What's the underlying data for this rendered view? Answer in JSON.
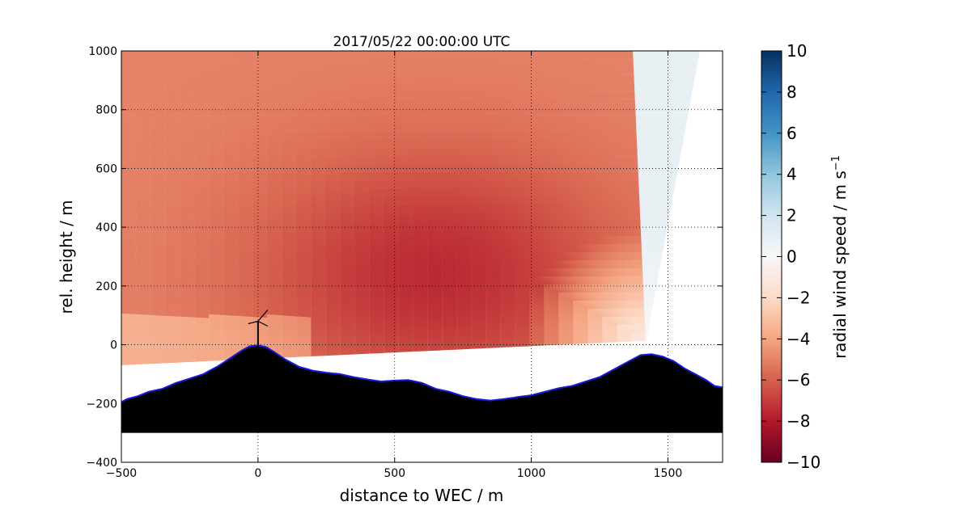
{
  "chart_data": {
    "type": "heatmap",
    "title": "2017/05/22 00:00:00 UTC",
    "xlabel": "distance to WEC / m",
    "ylabel": "rel. height / m",
    "xlim": [
      -500,
      1700
    ],
    "ylim": [
      -400,
      1000
    ],
    "xticks": [
      -500,
      0,
      500,
      1000,
      1500
    ],
    "xtick_labels": [
      "−500",
      "0",
      "500",
      "1000",
      "1500"
    ],
    "yticks": [
      -400,
      -200,
      0,
      200,
      400,
      600,
      800,
      1000
    ],
    "ytick_labels": [
      "−400",
      "−200",
      "0",
      "200",
      "400",
      "600",
      "800",
      "1000"
    ],
    "grid": true,
    "colorbar": {
      "label": "radial wind speed / m s",
      "label_superscript": "−1",
      "colormap": "RdBu",
      "range": [
        -10,
        10
      ],
      "ticks": [
        10,
        8,
        6,
        4,
        2,
        0,
        -2,
        -4,
        -6,
        -8,
        -10
      ],
      "tick_labels": [
        "10",
        "8",
        "6",
        "4",
        "2",
        "0",
        "−2",
        "−4",
        "−6",
        "−8",
        "−10"
      ]
    },
    "scan_origin": {
      "x": 1420,
      "y": 15
    },
    "turbine": {
      "x": 0,
      "y": 0,
      "hub_height": 80
    },
    "terrain": {
      "x": [
        -500,
        -480,
        -440,
        -400,
        -350,
        -300,
        -250,
        -200,
        -150,
        -100,
        -60,
        -30,
        0,
        30,
        60,
        100,
        150,
        200,
        250,
        300,
        350,
        400,
        450,
        500,
        550,
        600,
        650,
        700,
        750,
        800,
        850,
        900,
        950,
        1000,
        1050,
        1100,
        1150,
        1200,
        1250,
        1300,
        1350,
        1400,
        1440,
        1480,
        1520,
        1560,
        1600,
        1640,
        1670,
        1700
      ],
      "y": [
        -195,
        -185,
        -175,
        -160,
        -150,
        -130,
        -115,
        -100,
        -75,
        -45,
        -20,
        -5,
        -2,
        -8,
        -25,
        -50,
        -75,
        -88,
        -95,
        -100,
        -110,
        -118,
        -125,
        -122,
        -120,
        -130,
        -150,
        -160,
        -175,
        -185,
        -190,
        -185,
        -178,
        -172,
        -160,
        -148,
        -140,
        -125,
        -110,
        -85,
        -60,
        -35,
        -32,
        -40,
        -55,
        -80,
        -100,
        -120,
        -140,
        -145
      ],
      "floor": -300
    },
    "scan_wind_model": {
      "note": "Radial wind speed field (m/s) along lidar beams from the scan origin",
      "near_origin": -1,
      "core_value": -7.5,
      "far_left_value": -5,
      "steep_beam_value": 0.8
    }
  }
}
